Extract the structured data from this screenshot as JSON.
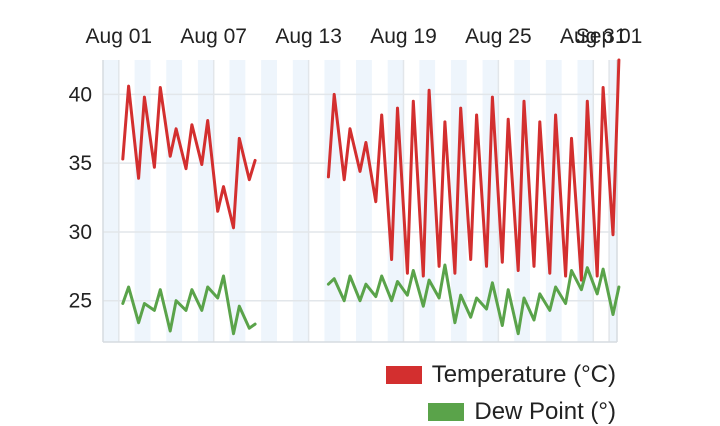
{
  "chart_data": {
    "type": "line",
    "x_ticks": [
      "Aug 01",
      "Aug 07",
      "Aug 13",
      "Aug 19",
      "Aug 25",
      "Aug 31",
      "Sep 01"
    ],
    "y_ticks": [
      25,
      30,
      35,
      40
    ],
    "xlim": [
      "2023-07-31",
      "2023-09-01"
    ],
    "ylim": [
      22,
      42.5
    ],
    "grid": true,
    "legend_position": "bottom-right",
    "series": [
      {
        "name": "Temperature (°C)",
        "color": "#d32f2f",
        "daily": [
          {
            "date": "Aug 01",
            "min": 35.3,
            "max": 40.6
          },
          {
            "date": "Aug 02",
            "min": 33.9,
            "max": 39.8
          },
          {
            "date": "Aug 03",
            "min": 34.7,
            "max": 40.5
          },
          {
            "date": "Aug 04",
            "min": 35.5,
            "max": 37.5
          },
          {
            "date": "Aug 05",
            "min": 34.6,
            "max": 37.8
          },
          {
            "date": "Aug 06",
            "min": 34.9,
            "max": 38.1
          },
          {
            "date": "Aug 07",
            "min": 31.5,
            "max": 33.3
          },
          {
            "date": "Aug 08",
            "min": 30.3,
            "max": 36.8
          },
          {
            "date": "Aug 09",
            "min": 33.8,
            "max": 35.2
          },
          {
            "date": "Aug 14",
            "min": 34.0,
            "max": 40.0
          },
          {
            "date": "Aug 15",
            "min": 33.8,
            "max": 37.5
          },
          {
            "date": "Aug 16",
            "min": 34.4,
            "max": 36.5
          },
          {
            "date": "Aug 17",
            "min": 32.2,
            "max": 38.5
          },
          {
            "date": "Aug 18",
            "min": 28.0,
            "max": 39.0
          },
          {
            "date": "Aug 19",
            "min": 27.0,
            "max": 39.5
          },
          {
            "date": "Aug 20",
            "min": 26.8,
            "max": 40.3
          },
          {
            "date": "Aug 21",
            "min": 27.5,
            "max": 38.0
          },
          {
            "date": "Aug 22",
            "min": 27.0,
            "max": 39.0
          },
          {
            "date": "Aug 23",
            "min": 28.0,
            "max": 38.5
          },
          {
            "date": "Aug 24",
            "min": 27.5,
            "max": 39.8
          },
          {
            "date": "Aug 25",
            "min": 27.8,
            "max": 38.2
          },
          {
            "date": "Aug 26",
            "min": 27.2,
            "max": 39.5
          },
          {
            "date": "Aug 27",
            "min": 27.5,
            "max": 38.0
          },
          {
            "date": "Aug 28",
            "min": 27.0,
            "max": 38.5
          },
          {
            "date": "Aug 29",
            "min": 26.8,
            "max": 36.8
          },
          {
            "date": "Aug 30",
            "min": 26.5,
            "max": 39.5
          },
          {
            "date": "Aug 31",
            "min": 26.8,
            "max": 40.5
          },
          {
            "date": "Sep 01",
            "min": 29.8,
            "max": 42.5
          }
        ]
      },
      {
        "name": "Dew Point (°)",
        "color": "#5aa34a",
        "daily": [
          {
            "date": "Aug 01",
            "min": 24.8,
            "max": 26.0
          },
          {
            "date": "Aug 02",
            "min": 23.4,
            "max": 24.8
          },
          {
            "date": "Aug 03",
            "min": 24.3,
            "max": 25.8
          },
          {
            "date": "Aug 04",
            "min": 22.8,
            "max": 25.0
          },
          {
            "date": "Aug 05",
            "min": 24.3,
            "max": 25.8
          },
          {
            "date": "Aug 06",
            "min": 24.3,
            "max": 26.0
          },
          {
            "date": "Aug 07",
            "min": 25.2,
            "max": 26.8
          },
          {
            "date": "Aug 08",
            "min": 22.6,
            "max": 24.6
          },
          {
            "date": "Aug 09",
            "min": 23.0,
            "max": 23.3
          },
          {
            "date": "Aug 14",
            "min": 26.2,
            "max": 26.6
          },
          {
            "date": "Aug 15",
            "min": 25.0,
            "max": 26.8
          },
          {
            "date": "Aug 16",
            "min": 25.0,
            "max": 26.2
          },
          {
            "date": "Aug 17",
            "min": 25.3,
            "max": 26.8
          },
          {
            "date": "Aug 18",
            "min": 25.0,
            "max": 26.4
          },
          {
            "date": "Aug 19",
            "min": 25.4,
            "max": 27.2
          },
          {
            "date": "Aug 20",
            "min": 24.6,
            "max": 26.5
          },
          {
            "date": "Aug 21",
            "min": 25.2,
            "max": 27.6
          },
          {
            "date": "Aug 22",
            "min": 23.4,
            "max": 25.4
          },
          {
            "date": "Aug 23",
            "min": 23.8,
            "max": 25.2
          },
          {
            "date": "Aug 24",
            "min": 24.4,
            "max": 26.3
          },
          {
            "date": "Aug 25",
            "min": 23.2,
            "max": 25.8
          },
          {
            "date": "Aug 26",
            "min": 22.6,
            "max": 25.2
          },
          {
            "date": "Aug 27",
            "min": 23.6,
            "max": 25.5
          },
          {
            "date": "Aug 28",
            "min": 24.3,
            "max": 26.0
          },
          {
            "date": "Aug 29",
            "min": 24.8,
            "max": 27.2
          },
          {
            "date": "Aug 30",
            "min": 25.8,
            "max": 27.4
          },
          {
            "date": "Aug 31",
            "min": 25.5,
            "max": 27.3
          },
          {
            "date": "Sep 01",
            "min": 24.0,
            "max": 26.0
          }
        ]
      }
    ]
  }
}
